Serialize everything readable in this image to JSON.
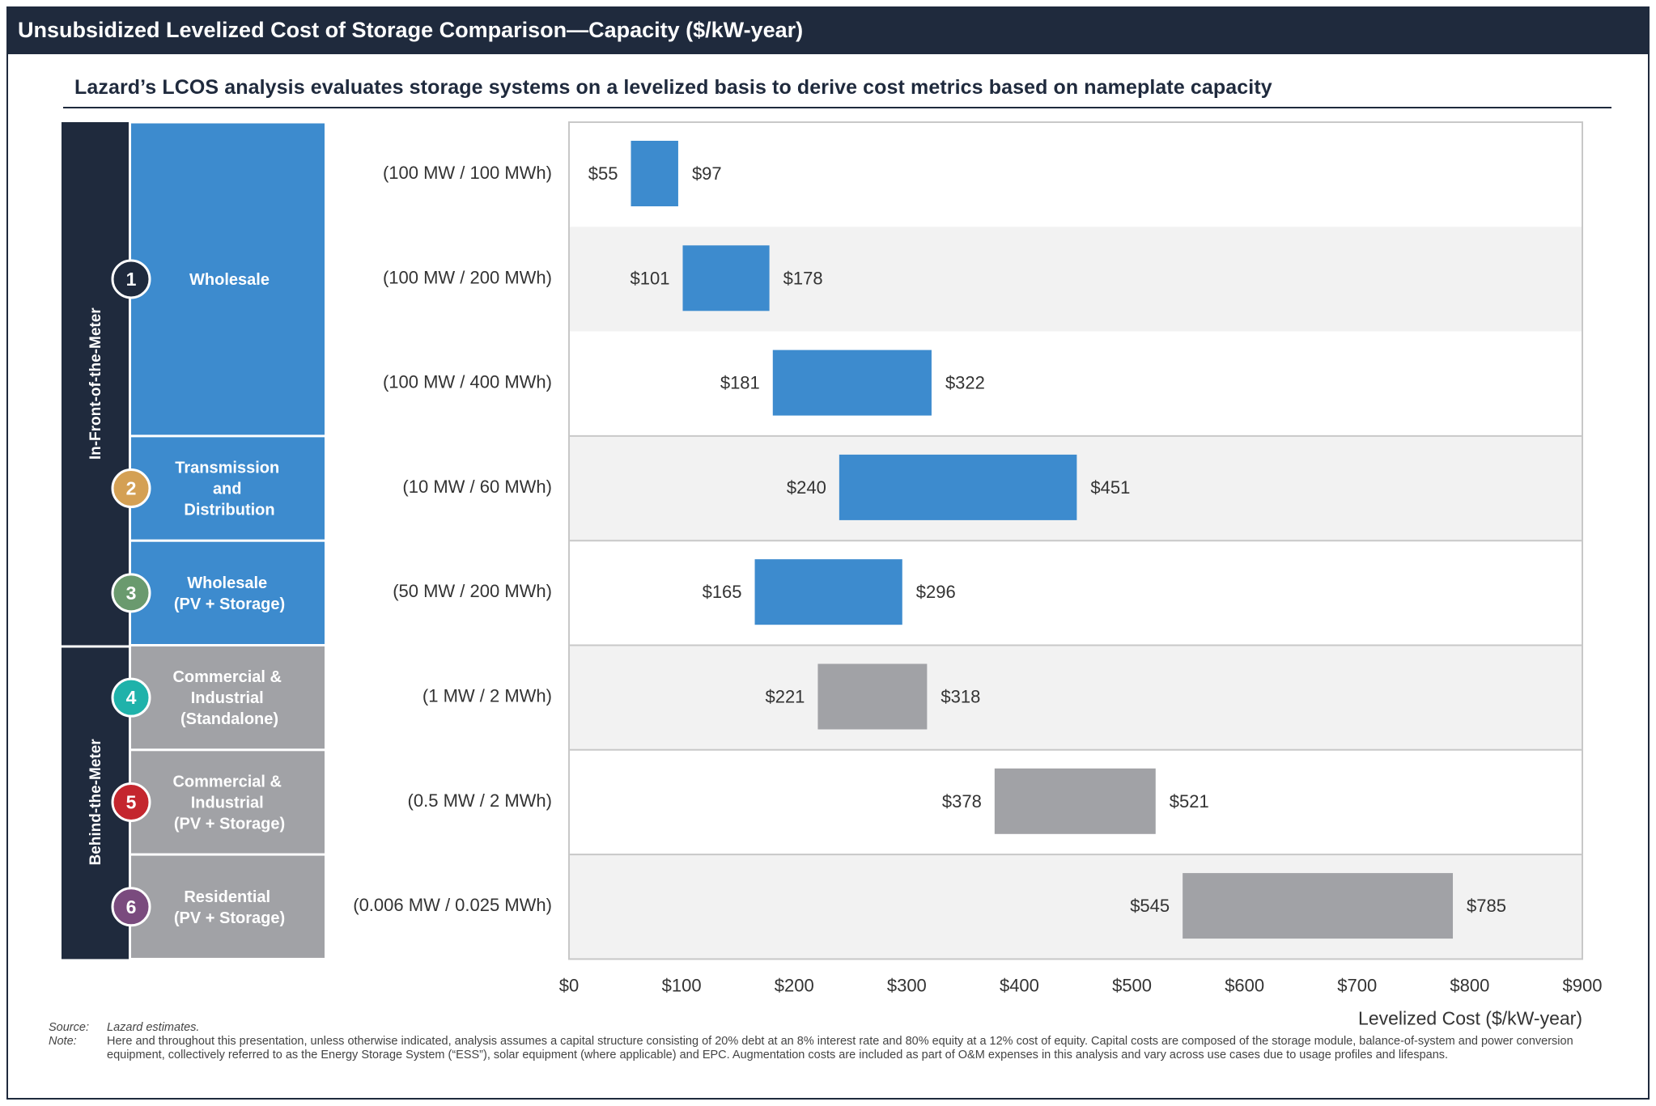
{
  "header": {
    "title": "Unsubsidized Levelized Cost of Storage Comparison—Capacity ($/kW-year)",
    "subtitle": "Lazard’s LCOS analysis evaluates storage systems on a levelized basis to derive cost metrics based on nameplate capacity"
  },
  "colors": {
    "navy": "#1f2a3d",
    "blue": "#3d8bce",
    "gray": "#a1a2a6",
    "band": "#f2f2f2"
  },
  "groups": [
    {
      "label": "In-Front-of-the-Meter"
    },
    {
      "label": "Behind-the-Meter"
    }
  ],
  "use_cases": [
    {
      "number": "1",
      "label": "Wholesale",
      "badge_color": "#1f2a3d"
    },
    {
      "number": "2",
      "label": "Transmission and Distribution",
      "badge_color": "#d4a054"
    },
    {
      "number": "3",
      "label": "Wholesale (PV + Storage)",
      "badge_color": "#6a9a6e"
    },
    {
      "number": "4",
      "label": "Commercial & Industrial (Standalone)",
      "badge_color": "#1fb2aa"
    },
    {
      "number": "5",
      "label": "Commercial & Industrial (PV + Storage)",
      "badge_color": "#c4262e"
    },
    {
      "number": "6",
      "label": "Residential (PV + Storage)",
      "badge_color": "#7a4b7e"
    }
  ],
  "chart_data": {
    "type": "bar",
    "orientation": "horizontal-floating-range",
    "xlabel": "Levelized Cost ($/kW-year)",
    "xlim": [
      0,
      900
    ],
    "xticks": [
      "$0",
      "$100",
      "$200",
      "$300",
      "$400",
      "$500",
      "$600",
      "$700",
      "$800",
      "$900"
    ],
    "categories": [
      "(100 MW / 100 MWh)",
      "(100 MW / 200 MWh)",
      "(100 MW / 400 MWh)",
      "(10 MW / 60 MWh)",
      "(50 MW / 200 MWh)",
      "(1 MW / 2 MWh)",
      "(0.5 MW / 2 MWh)",
      "(0.006 MW / 0.025 MWh)"
    ],
    "low": [
      55,
      101,
      181,
      240,
      165,
      221,
      378,
      545
    ],
    "high": [
      97,
      178,
      322,
      451,
      296,
      318,
      521,
      785
    ],
    "low_labels": [
      "$55",
      "$101",
      "$181",
      "$240",
      "$165",
      "$221",
      "$378",
      "$545"
    ],
    "high_labels": [
      "$97",
      "$178",
      "$322",
      "$451",
      "$296",
      "$318",
      "$521",
      "$785"
    ],
    "series_group": [
      "in-front",
      "in-front",
      "in-front",
      "in-front",
      "in-front",
      "behind",
      "behind",
      "behind"
    ]
  },
  "notes": {
    "source_key": "Source:",
    "source_text": "Lazard estimates.",
    "note_key": "Note:",
    "note_text": "Here and throughout this presentation, unless otherwise indicated, analysis assumes a capital structure consisting of 20% debt at an 8% interest rate and 80% equity at a 12% cost of equity. Capital costs are composed of the storage module, balance-of-system and power conversion equipment, collectively referred to as the Energy Storage System (“ESS”), solar equipment (where applicable) and EPC. Augmentation costs are included as part of O&M expenses in this analysis and vary across use cases due to usage profiles and lifespans."
  }
}
